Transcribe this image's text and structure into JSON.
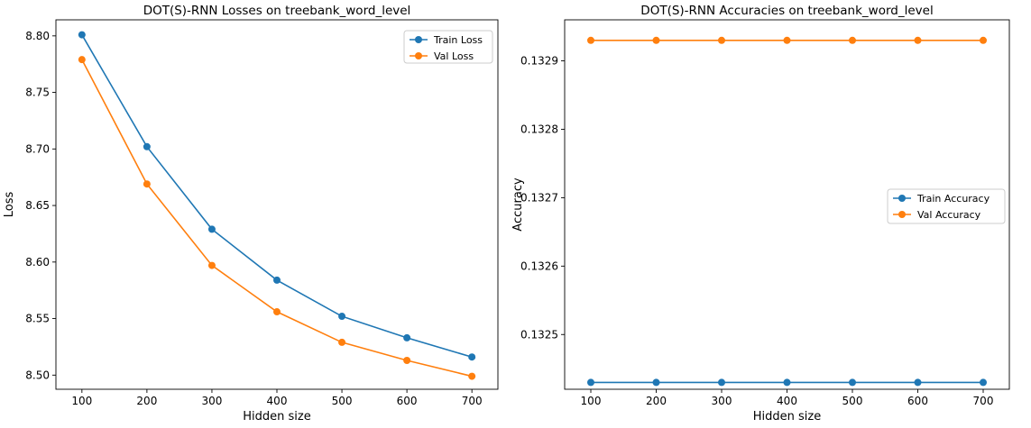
{
  "chart_data": [
    {
      "type": "line",
      "title": "DOT(S)-RNN Losses on treebank_word_level",
      "xlabel": "Hidden size",
      "ylabel": "Loss",
      "x": [
        100,
        200,
        300,
        400,
        500,
        600,
        700
      ],
      "xticks": [
        "100",
        "200",
        "300",
        "400",
        "500",
        "600",
        "700"
      ],
      "yticks": [
        "8.50",
        "8.55",
        "8.60",
        "8.65",
        "8.70",
        "8.75",
        "8.80"
      ],
      "xlim": [
        60,
        740
      ],
      "ylim": [
        8.4875,
        8.8142
      ],
      "grid": false,
      "legend_position": "upper right",
      "series": [
        {
          "name": "Train Loss",
          "color": "#1f77b4",
          "values": [
            8.801,
            8.702,
            8.629,
            8.584,
            8.552,
            8.533,
            8.516
          ]
        },
        {
          "name": "Val Loss",
          "color": "#ff7f0e",
          "values": [
            8.779,
            8.669,
            8.597,
            8.556,
            8.529,
            8.513,
            8.499
          ]
        }
      ]
    },
    {
      "type": "line",
      "title": "DOT(S)-RNN Accuracies on treebank_word_level",
      "xlabel": "Hidden size",
      "ylabel": "Accuracy",
      "x": [
        100,
        200,
        300,
        400,
        500,
        600,
        700
      ],
      "xticks": [
        "100",
        "200",
        "300",
        "400",
        "500",
        "600",
        "700"
      ],
      "yticks": [
        "0.1325",
        "0.1326",
        "0.1327",
        "0.1328",
        "0.1329"
      ],
      "xlim": [
        60,
        740
      ],
      "ylim": [
        0.13242,
        0.13296
      ],
      "grid": false,
      "legend_position": "center right",
      "series": [
        {
          "name": "Train Accuracy",
          "color": "#1f77b4",
          "values": [
            0.13243,
            0.13243,
            0.13243,
            0.13243,
            0.13243,
            0.13243,
            0.13243
          ]
        },
        {
          "name": "Val Accuracy",
          "color": "#ff7f0e",
          "values": [
            0.13293,
            0.13293,
            0.13293,
            0.13293,
            0.13293,
            0.13293,
            0.13293
          ]
        }
      ]
    }
  ]
}
